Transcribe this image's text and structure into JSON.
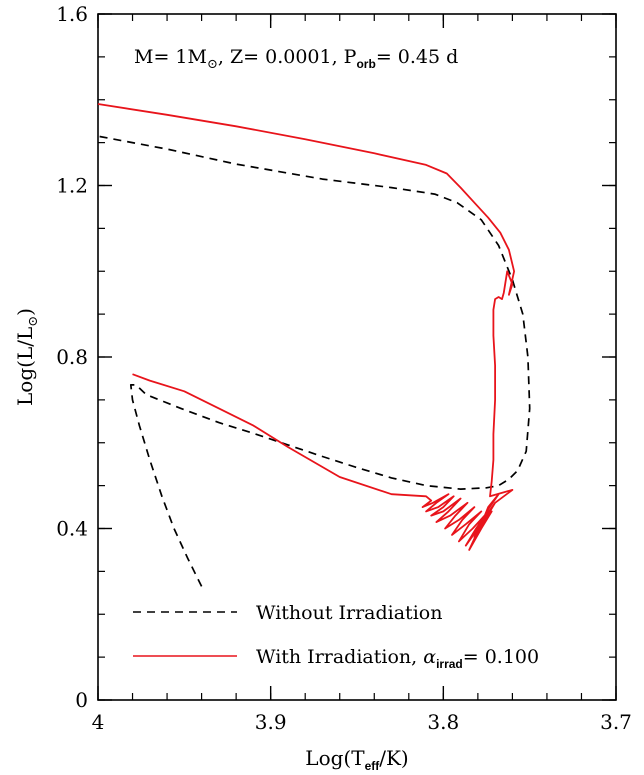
{
  "chart_data": {
    "type": "line",
    "xlabel": "Log(T_eff/K)",
    "ylabel": "Log(L/L_sun)",
    "xlim": [
      4.0,
      3.7
    ],
    "ylim": [
      0.0,
      1.6
    ],
    "x_reversed": true,
    "x_ticks": [
      4.0,
      3.9,
      3.8,
      3.7
    ],
    "x_tick_labels": [
      "4",
      "3.9",
      "3.8",
      "3.7"
    ],
    "y_ticks": [
      0.0,
      0.4,
      0.8,
      1.2,
      1.6
    ],
    "y_tick_labels": [
      "0",
      "0.4",
      "0.8",
      "1.2",
      "1.6"
    ],
    "annotation": "M= 1M☉, Z= 0.0001, P_orb= 0.45 d",
    "legend_position": "bottom",
    "series": [
      {
        "name": "Without Irradiation",
        "color": "#000000",
        "dash": "dashed",
        "points": [
          [
            3.94,
            0.265
          ],
          [
            3.948,
            0.33
          ],
          [
            3.956,
            0.4
          ],
          [
            3.963,
            0.475
          ],
          [
            3.97,
            0.56
          ],
          [
            3.976,
            0.64
          ],
          [
            3.98,
            0.7
          ],
          [
            3.981,
            0.735
          ],
          [
            3.978,
            0.735
          ],
          [
            3.972,
            0.712
          ],
          [
            3.952,
            0.68
          ],
          [
            3.93,
            0.647
          ],
          [
            3.91,
            0.622
          ],
          [
            3.89,
            0.595
          ],
          [
            3.87,
            0.568
          ],
          [
            3.85,
            0.542
          ],
          [
            3.83,
            0.518
          ],
          [
            3.81,
            0.5
          ],
          [
            3.79,
            0.492
          ],
          [
            3.775,
            0.495
          ],
          [
            3.768,
            0.5
          ],
          [
            3.762,
            0.515
          ],
          [
            3.757,
            0.535
          ],
          [
            3.752,
            0.58
          ],
          [
            3.75,
            0.68
          ],
          [
            3.751,
            0.8
          ],
          [
            3.754,
            0.9
          ],
          [
            3.76,
            0.98
          ],
          [
            3.768,
            1.06
          ],
          [
            3.778,
            1.12
          ],
          [
            3.792,
            1.16
          ],
          [
            3.805,
            1.18
          ],
          [
            3.83,
            1.195
          ],
          [
            3.87,
            1.215
          ],
          [
            3.92,
            1.25
          ],
          [
            3.96,
            1.285
          ],
          [
            4.0,
            1.315
          ]
        ]
      },
      {
        "name": "With Irradiation, α_irrad= 0.100",
        "color": "#e8141b",
        "dash": "solid",
        "points": [
          [
            4.0,
            1.39
          ],
          [
            3.96,
            1.365
          ],
          [
            3.92,
            1.338
          ],
          [
            3.88,
            1.308
          ],
          [
            3.84,
            1.275
          ],
          [
            3.81,
            1.248
          ],
          [
            3.798,
            1.228
          ],
          [
            3.79,
            1.195
          ],
          [
            3.782,
            1.16
          ],
          [
            3.774,
            1.125
          ],
          [
            3.767,
            1.09
          ],
          [
            3.762,
            1.05
          ],
          [
            3.759,
            1.0
          ],
          [
            3.762,
            0.945
          ],
          [
            3.76,
            0.97
          ],
          [
            3.763,
            1.0
          ],
          [
            3.765,
            0.95
          ],
          [
            3.766,
            0.935
          ],
          [
            3.768,
            0.94
          ],
          [
            3.77,
            0.935
          ],
          [
            3.771,
            0.91
          ],
          [
            3.771,
            0.85
          ],
          [
            3.77,
            0.78
          ],
          [
            3.77,
            0.7
          ],
          [
            3.771,
            0.62
          ],
          [
            3.771,
            0.56
          ],
          [
            3.772,
            0.51
          ],
          [
            3.773,
            0.475
          ],
          [
            3.76,
            0.49
          ],
          [
            3.77,
            0.46
          ],
          [
            3.778,
            0.41
          ],
          [
            3.774,
            0.45
          ],
          [
            3.768,
            0.48
          ],
          [
            3.774,
            0.445
          ],
          [
            3.782,
            0.38
          ],
          [
            3.776,
            0.42
          ],
          [
            3.77,
            0.46
          ],
          [
            3.777,
            0.42
          ],
          [
            3.785,
            0.35
          ],
          [
            3.778,
            0.4
          ],
          [
            3.772,
            0.44
          ],
          [
            3.779,
            0.405
          ],
          [
            3.787,
            0.36
          ],
          [
            3.781,
            0.4
          ],
          [
            3.775,
            0.435
          ],
          [
            3.783,
            0.4
          ],
          [
            3.791,
            0.37
          ],
          [
            3.785,
            0.41
          ],
          [
            3.778,
            0.44
          ],
          [
            3.787,
            0.41
          ],
          [
            3.795,
            0.385
          ],
          [
            3.789,
            0.42
          ],
          [
            3.782,
            0.45
          ],
          [
            3.791,
            0.42
          ],
          [
            3.799,
            0.4
          ],
          [
            3.793,
            0.43
          ],
          [
            3.786,
            0.46
          ],
          [
            3.796,
            0.43
          ],
          [
            3.804,
            0.415
          ],
          [
            3.797,
            0.44
          ],
          [
            3.79,
            0.47
          ],
          [
            3.8,
            0.44
          ],
          [
            3.807,
            0.43
          ],
          [
            3.8,
            0.45
          ],
          [
            3.794,
            0.475
          ],
          [
            3.803,
            0.45
          ],
          [
            3.81,
            0.44
          ],
          [
            3.804,
            0.46
          ],
          [
            3.797,
            0.48
          ],
          [
            3.806,
            0.46
          ],
          [
            3.812,
            0.45
          ],
          [
            3.807,
            0.465
          ],
          [
            3.81,
            0.475
          ],
          [
            3.83,
            0.48
          ],
          [
            3.86,
            0.52
          ],
          [
            3.89,
            0.59
          ],
          [
            3.91,
            0.64
          ],
          [
            3.93,
            0.68
          ],
          [
            3.95,
            0.72
          ],
          [
            3.97,
            0.745
          ],
          [
            3.98,
            0.76
          ]
        ]
      }
    ]
  }
}
